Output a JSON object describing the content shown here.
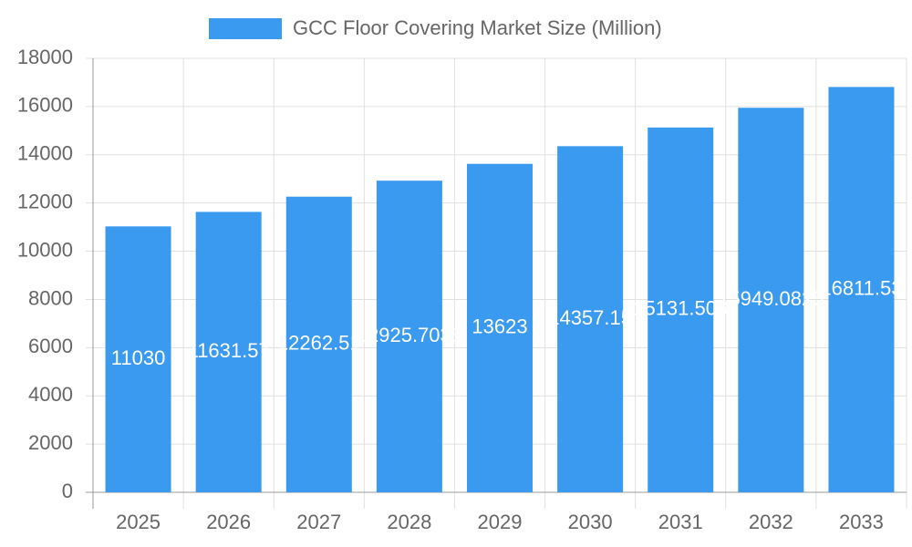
{
  "chart_data": {
    "type": "bar",
    "categories": [
      "2025",
      "2026",
      "2027",
      "2028",
      "2029",
      "2030",
      "2031",
      "2032",
      "2033"
    ],
    "series": [
      {
        "name": "GCC Floor Covering Market Size (Million)",
        "color": "#3a9af0",
        "values": [
          11030,
          11631.57,
          12262.51,
          12925.7035,
          13623,
          14357.15,
          15131.506,
          15949.0825,
          16811.53
        ]
      }
    ],
    "ylim": [
      0,
      18000
    ],
    "yticks": [
      0,
      2000,
      4000,
      6000,
      8000,
      10000,
      12000,
      14000,
      16000,
      18000
    ],
    "grid": true,
    "legend": "top",
    "data_labels": true
  }
}
